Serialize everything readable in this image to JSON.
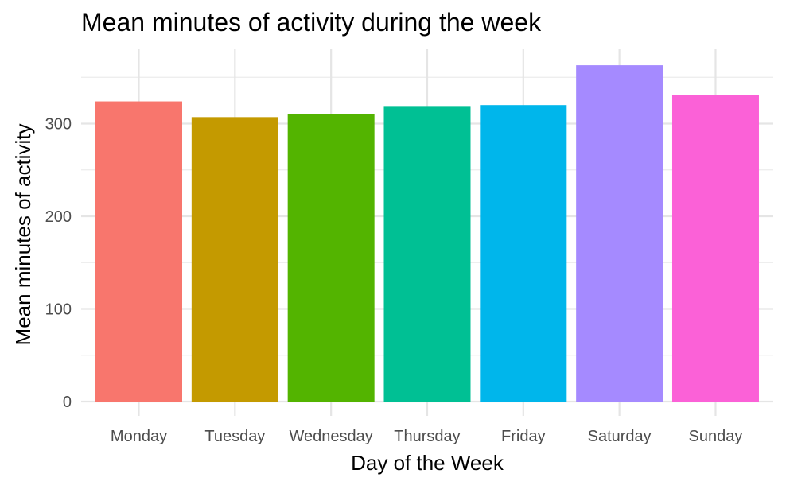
{
  "chart_data": {
    "type": "bar",
    "title": "Mean minutes of activity during the week",
    "xlabel": "Day of the Week",
    "ylabel": "Mean minutes of activity",
    "categories": [
      "Monday",
      "Tuesday",
      "Wednesday",
      "Thursday",
      "Friday",
      "Saturday",
      "Sunday"
    ],
    "values": [
      324,
      307,
      310,
      319,
      320,
      363,
      331
    ],
    "colors": [
      "#F8766D",
      "#C49A00",
      "#53B400",
      "#00C094",
      "#00B6EB",
      "#A58AFF",
      "#FB61D7"
    ],
    "ylim": [
      0,
      380
    ],
    "yticks": [
      0,
      100,
      200,
      300
    ],
    "grid": true,
    "legend": "none"
  }
}
